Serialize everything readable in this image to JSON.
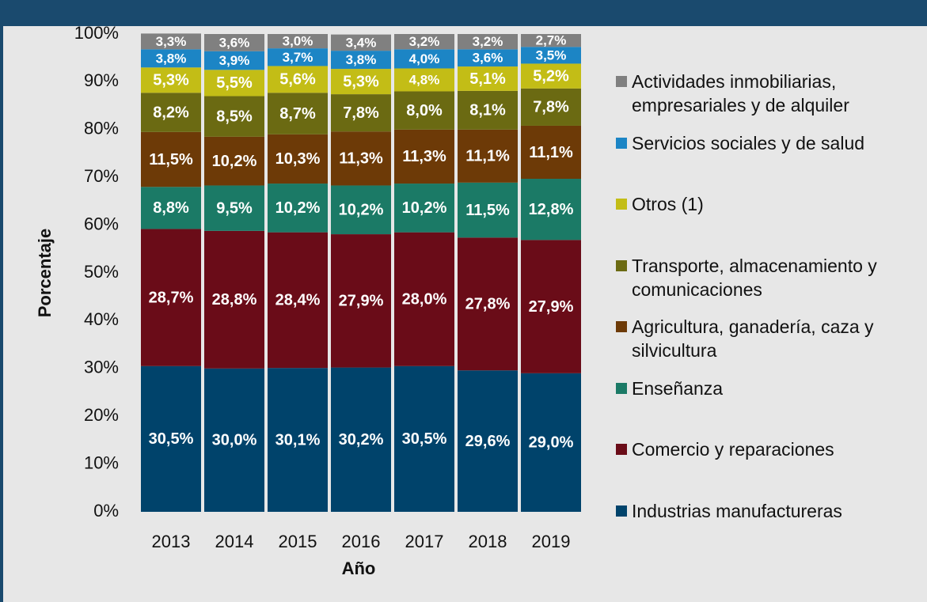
{
  "chart_data": {
    "type": "stacked-bar",
    "xlabel": "Año",
    "ylabel": "Porcentaje",
    "categories": [
      "2013",
      "2014",
      "2015",
      "2016",
      "2017",
      "2018",
      "2019"
    ],
    "ylim": [
      0,
      100
    ],
    "yticks": [
      {
        "value": 0,
        "label": "0%"
      },
      {
        "value": 10,
        "label": "10%"
      },
      {
        "value": 20,
        "label": "20%"
      },
      {
        "value": 30,
        "label": "30%"
      },
      {
        "value": 40,
        "label": "40%"
      },
      {
        "value": 50,
        "label": "50%"
      },
      {
        "value": 60,
        "label": "60%"
      },
      {
        "value": 70,
        "label": "70%"
      },
      {
        "value": 80,
        "label": "80%"
      },
      {
        "value": 90,
        "label": "90%"
      },
      {
        "value": 100,
        "label": "100%"
      }
    ],
    "legend": "right",
    "series": [
      {
        "name": "Industrias manufactureras",
        "color": "#00436b",
        "values": [
          30.5,
          30.0,
          30.1,
          30.2,
          30.5,
          29.6,
          29.0
        ],
        "value_labels": [
          "30,5%",
          "30,0%",
          "30,1%",
          "30,2%",
          "30,5%",
          "29,6%",
          "29,0%"
        ]
      },
      {
        "name": "Comercio y reparaciones",
        "color": "#6a0c18",
        "values": [
          28.7,
          28.8,
          28.4,
          27.9,
          28.0,
          27.8,
          27.9
        ],
        "value_labels": [
          "28,7%",
          "28,8%",
          "28,4%",
          "27,9%",
          "28,0%",
          "27,8%",
          "27,9%"
        ]
      },
      {
        "name": "Enseñanza",
        "color": "#1b7a66",
        "values": [
          8.8,
          9.5,
          10.2,
          10.2,
          10.2,
          11.5,
          12.8
        ],
        "value_labels": [
          "8,8%",
          "9,5%",
          "10,2%",
          "10,2%",
          "10,2%",
          "11,5%",
          "12,8%"
        ]
      },
      {
        "name": "Agricultura, ganadería, caza y silvicultura",
        "color": "#6d3a07",
        "values": [
          11.5,
          10.2,
          10.3,
          11.3,
          11.3,
          11.1,
          11.1
        ],
        "value_labels": [
          "11,5%",
          "10,2%",
          "10,3%",
          "11,3%",
          "11,3%",
          "11,1%",
          "11,1%"
        ]
      },
      {
        "name": "Transporte, almacenamiento y comunicaciones",
        "color": "#6b6a12",
        "values": [
          8.2,
          8.5,
          8.7,
          7.8,
          8.0,
          8.1,
          7.8
        ],
        "value_labels": [
          "8,2%",
          "8,5%",
          "8,7%",
          "7,8%",
          "8,0%",
          "8,1%",
          "7,8%"
        ]
      },
      {
        "name": "Otros (1)",
        "color": "#c3bd16",
        "values": [
          5.3,
          5.5,
          5.6,
          5.3,
          4.8,
          5.1,
          5.2
        ],
        "value_labels": [
          "5,3%",
          "5,5%",
          "5,6%",
          "5,3%",
          "4,8%",
          "5,1%",
          "5,2%"
        ]
      },
      {
        "name": "Servicios sociales y de salud",
        "color": "#1c85c5",
        "values": [
          3.8,
          3.9,
          3.7,
          3.8,
          4.0,
          3.6,
          3.5
        ],
        "value_labels": [
          "3,8%",
          "3,9%",
          "3,7%",
          "3,8%",
          "4,0%",
          "3,6%",
          "3,5%"
        ]
      },
      {
        "name": "Actividades inmobiliarias, empresariales y de alquiler",
        "color": "#808080",
        "values": [
          3.3,
          3.6,
          3.0,
          3.4,
          3.2,
          3.2,
          2.7
        ],
        "value_labels": [
          "3,3%",
          "3,6%",
          "3,0%",
          "3,4%",
          "3,2%",
          "3,2%",
          "2,7%"
        ]
      }
    ]
  }
}
